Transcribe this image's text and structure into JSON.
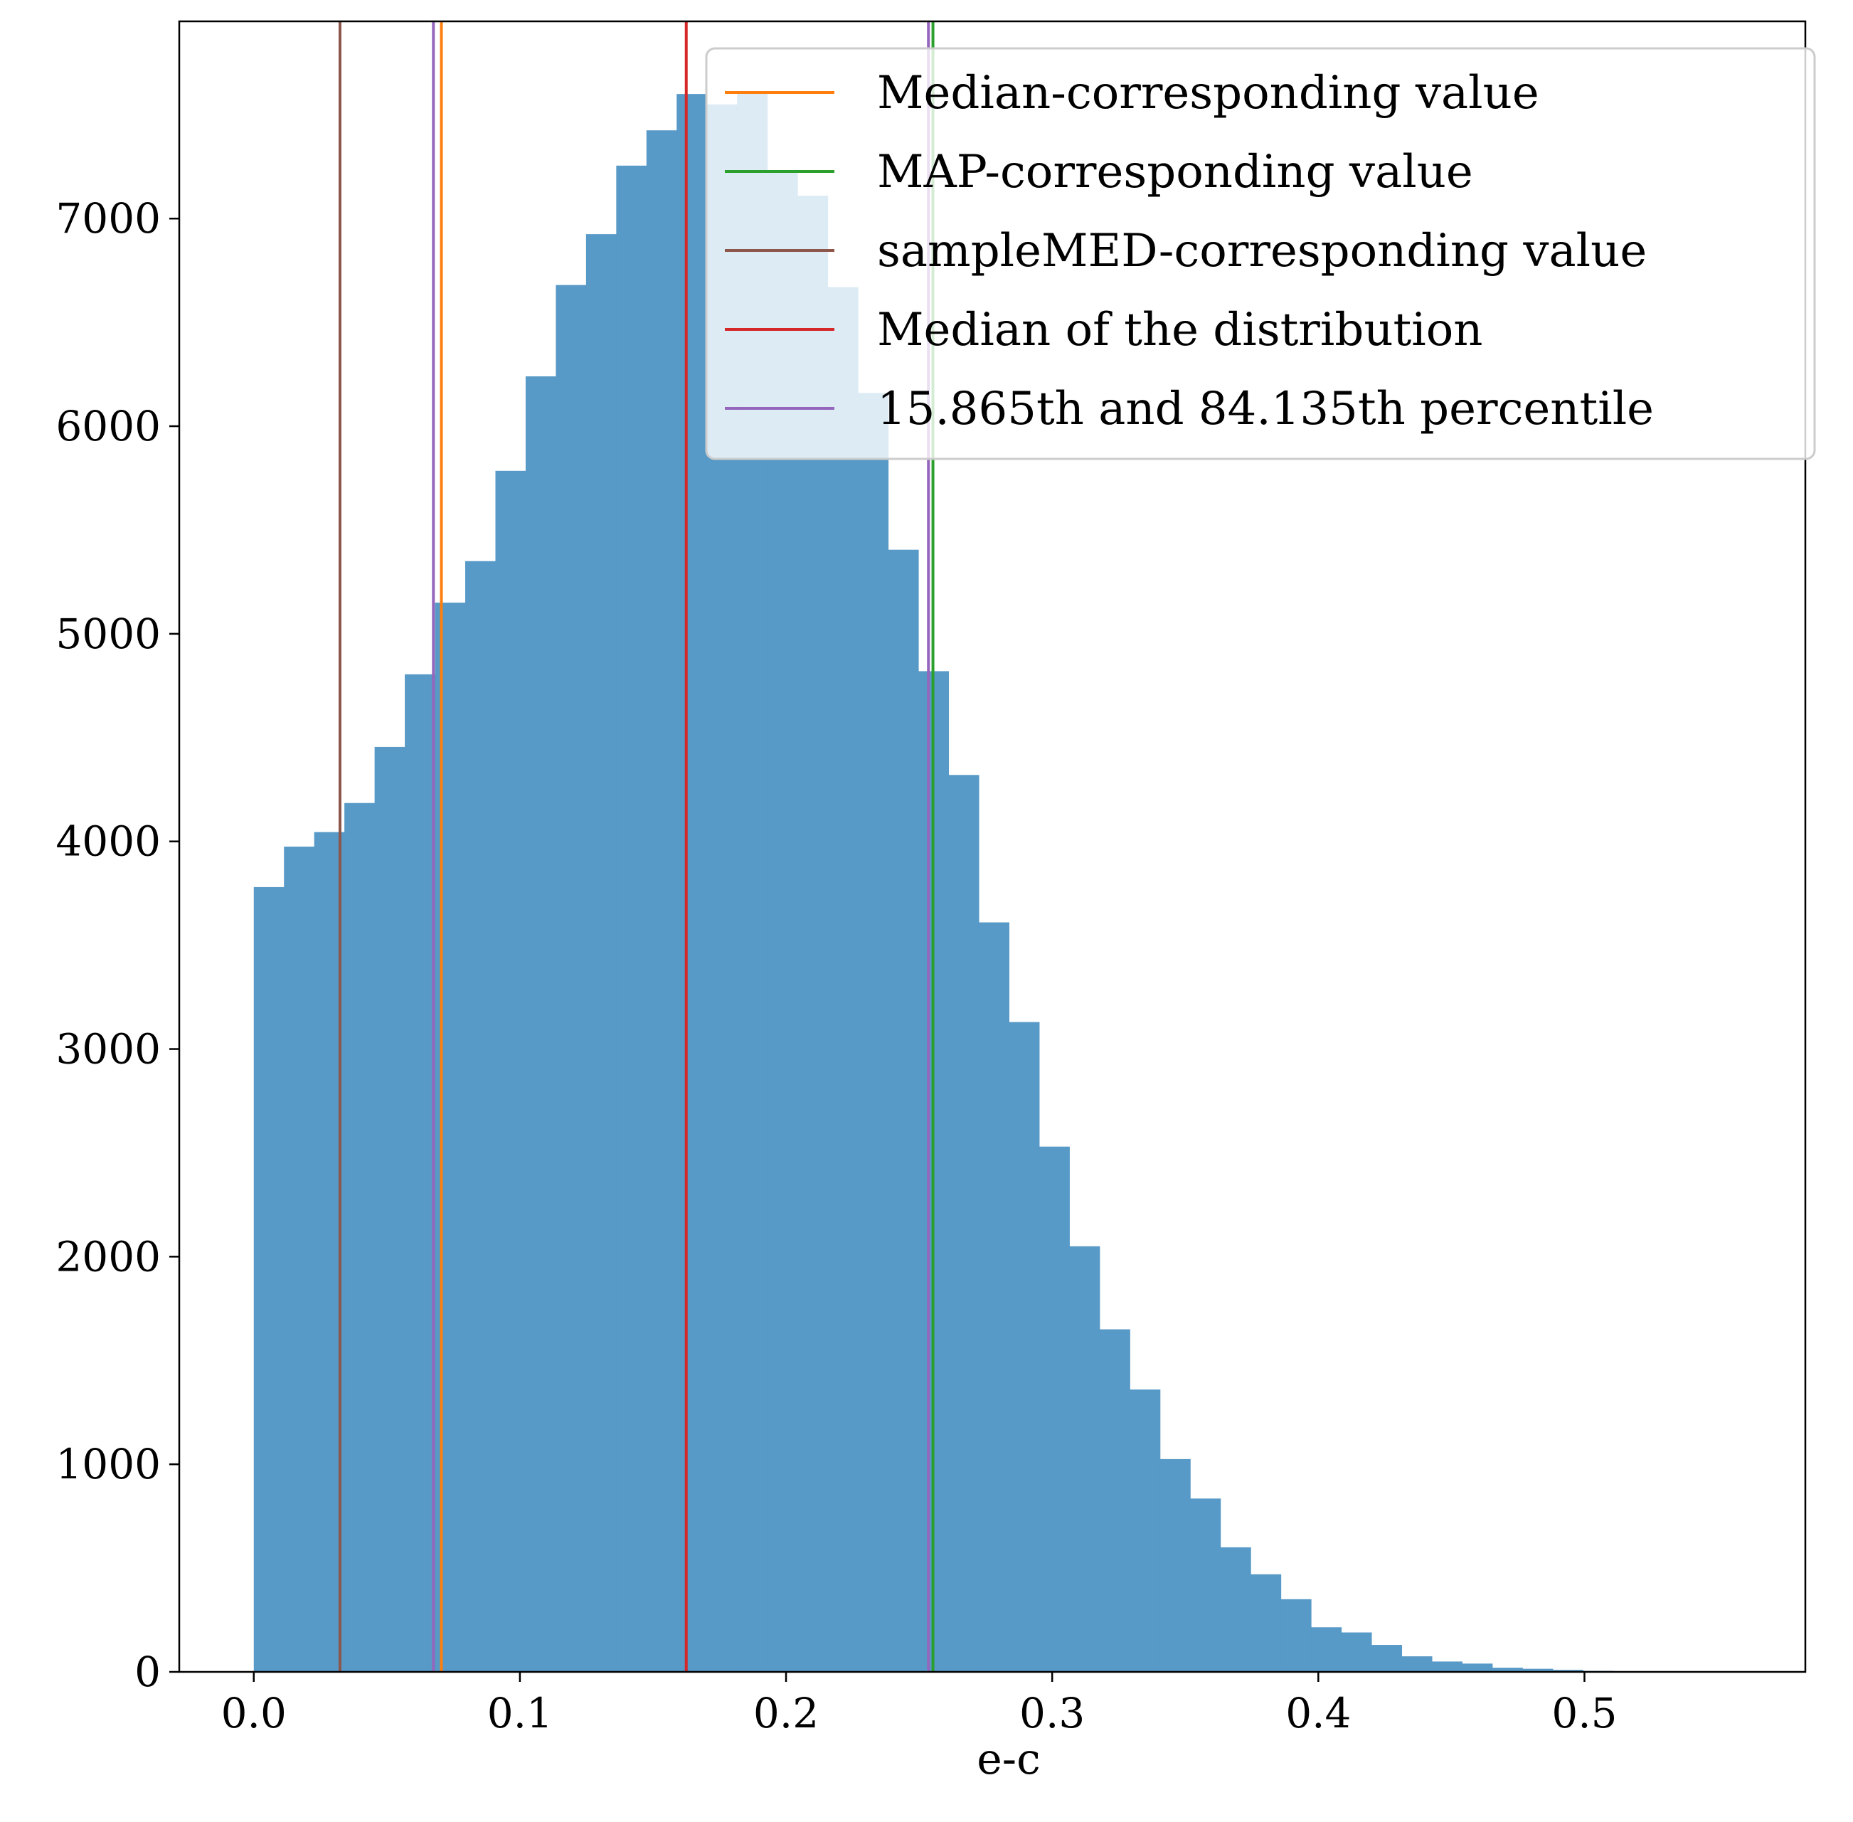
{
  "chart_data": {
    "type": "bar",
    "xlabel": "e-c",
    "ylabel": "",
    "title": "",
    "xlim": [
      -0.028,
      0.583
    ],
    "ylim": [
      0,
      7950
    ],
    "xticks": [
      0.0,
      0.1,
      0.2,
      0.3,
      0.4,
      0.5
    ],
    "xtick_labels": [
      "0.0",
      "0.1",
      "0.2",
      "0.3",
      "0.4",
      "0.5"
    ],
    "yticks": [
      0,
      1000,
      2000,
      3000,
      4000,
      5000,
      6000,
      7000
    ],
    "ytick_labels": [
      "0",
      "1000",
      "2000",
      "3000",
      "4000",
      "5000",
      "6000",
      "7000"
    ],
    "bar_color": "#5799c7",
    "bin_width": 0.01135,
    "bin_start": 0.0,
    "values": [
      3780,
      3975,
      4045,
      4185,
      4455,
      4805,
      5150,
      5350,
      5785,
      6240,
      6680,
      6925,
      7255,
      7425,
      7600,
      7550,
      7610,
      7225,
      7110,
      6670,
      6160,
      5405,
      4820,
      4320,
      3610,
      3130,
      2530,
      2050,
      1650,
      1360,
      1025,
      835,
      600,
      470,
      350,
      215,
      190,
      130,
      75,
      50,
      40,
      20,
      15,
      10,
      5,
      3,
      2,
      1,
      1,
      0
    ],
    "vlines": [
      {
        "name": "Median-corresponding value",
        "x": 0.0705,
        "color": "#ff7f0e"
      },
      {
        "name": "MAP-corresponding value",
        "x": 0.2552,
        "color": "#2ca02c"
      },
      {
        "name": "sampleMED-corresponding value",
        "x": 0.0324,
        "color": "#8c564b"
      },
      {
        "name": "Median of the distribution",
        "x": 0.1625,
        "color": "#d62728"
      },
      {
        "name": "15.865th and 84.135th percentile",
        "x": 0.0675,
        "color": "#9467bd"
      },
      {
        "name": "",
        "x": 0.2535,
        "color": "#9467bd"
      }
    ],
    "legend": {
      "placement": "top-right",
      "entries": [
        {
          "label": "Median-corresponding value",
          "color": "#ff7f0e"
        },
        {
          "label": "MAP-corresponding value",
          "color": "#2ca02c"
        },
        {
          "label": "sampleMED-corresponding value",
          "color": "#8c564b"
        },
        {
          "label": "Median of the distribution",
          "color": "#d62728"
        },
        {
          "label": "15.865th and 84.135th percentile",
          "color": "#9467bd"
        }
      ]
    },
    "grid": false
  }
}
